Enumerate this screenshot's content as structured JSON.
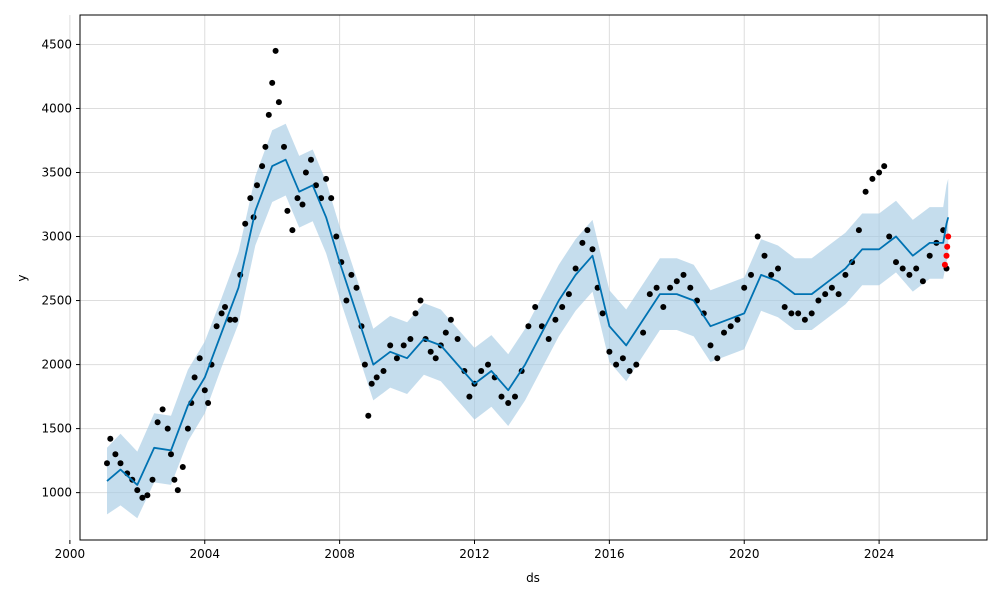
{
  "chart_data": {
    "type": "line",
    "title": "",
    "xlabel": "ds",
    "ylabel": "y",
    "xlim": [
      2000.3,
      2027.2
    ],
    "ylim": [
      630,
      4730
    ],
    "x_ticks": [
      2000,
      2004,
      2008,
      2012,
      2016,
      2020,
      2024
    ],
    "x_tick_labels": [
      "2000",
      "2004",
      "2008",
      "2012",
      "2016",
      "2020",
      "2024"
    ],
    "y_ticks": [
      1000,
      1500,
      2000,
      2500,
      3000,
      3500,
      4000,
      4500
    ],
    "y_tick_labels": [
      "1000",
      "1500",
      "2000",
      "2500",
      "3000",
      "3500",
      "4000",
      "4500"
    ],
    "grid": true,
    "colors": {
      "actual": "#000000",
      "forecast": "#0072B2",
      "interval": "#a6cbe3",
      "holdout": "#ff0000"
    },
    "series": [
      {
        "role": "actual",
        "type": "scatter",
        "points": [
          [
            2001.1,
            1230
          ],
          [
            2001.2,
            1420
          ],
          [
            2001.35,
            1300
          ],
          [
            2001.5,
            1230
          ],
          [
            2001.7,
            1150
          ],
          [
            2001.85,
            1100
          ],
          [
            2002.0,
            1020
          ],
          [
            2002.15,
            960
          ],
          [
            2002.3,
            980
          ],
          [
            2002.45,
            1100
          ],
          [
            2002.6,
            1550
          ],
          [
            2002.75,
            1650
          ],
          [
            2002.9,
            1500
          ],
          [
            2003.0,
            1300
          ],
          [
            2003.1,
            1100
          ],
          [
            2003.2,
            1020
          ],
          [
            2003.35,
            1200
          ],
          [
            2003.5,
            1500
          ],
          [
            2003.6,
            1700
          ],
          [
            2003.7,
            1900
          ],
          [
            2003.85,
            2050
          ],
          [
            2004.0,
            1800
          ],
          [
            2004.1,
            1700
          ],
          [
            2004.2,
            2000
          ],
          [
            2004.35,
            2300
          ],
          [
            2004.5,
            2400
          ],
          [
            2004.6,
            2450
          ],
          [
            2004.75,
            2350
          ],
          [
            2004.9,
            2350
          ],
          [
            2005.05,
            2700
          ],
          [
            2005.2,
            3100
          ],
          [
            2005.35,
            3300
          ],
          [
            2005.45,
            3150
          ],
          [
            2005.55,
            3400
          ],
          [
            2005.7,
            3550
          ],
          [
            2005.8,
            3700
          ],
          [
            2005.9,
            3950
          ],
          [
            2006.0,
            4200
          ],
          [
            2006.1,
            4450
          ],
          [
            2006.2,
            4050
          ],
          [
            2006.35,
            3700
          ],
          [
            2006.45,
            3200
          ],
          [
            2006.6,
            3050
          ],
          [
            2006.75,
            3300
          ],
          [
            2006.9,
            3250
          ],
          [
            2007.0,
            3500
          ],
          [
            2007.15,
            3600
          ],
          [
            2007.3,
            3400
          ],
          [
            2007.45,
            3300
          ],
          [
            2007.6,
            3450
          ],
          [
            2007.75,
            3300
          ],
          [
            2007.9,
            3000
          ],
          [
            2008.05,
            2800
          ],
          [
            2008.2,
            2500
          ],
          [
            2008.35,
            2700
          ],
          [
            2008.5,
            2600
          ],
          [
            2008.65,
            2300
          ],
          [
            2008.75,
            2000
          ],
          [
            2008.85,
            1600
          ],
          [
            2008.95,
            1850
          ],
          [
            2009.1,
            1900
          ],
          [
            2009.3,
            1950
          ],
          [
            2009.5,
            2150
          ],
          [
            2009.7,
            2050
          ],
          [
            2009.9,
            2150
          ],
          [
            2010.1,
            2200
          ],
          [
            2010.25,
            2400
          ],
          [
            2010.4,
            2500
          ],
          [
            2010.55,
            2200
          ],
          [
            2010.7,
            2100
          ],
          [
            2010.85,
            2050
          ],
          [
            2011.0,
            2150
          ],
          [
            2011.15,
            2250
          ],
          [
            2011.3,
            2350
          ],
          [
            2011.5,
            2200
          ],
          [
            2011.7,
            1950
          ],
          [
            2011.85,
            1750
          ],
          [
            2012.0,
            1850
          ],
          [
            2012.2,
            1950
          ],
          [
            2012.4,
            2000
          ],
          [
            2012.6,
            1900
          ],
          [
            2012.8,
            1750
          ],
          [
            2013.0,
            1700
          ],
          [
            2013.2,
            1750
          ],
          [
            2013.4,
            1950
          ],
          [
            2013.6,
            2300
          ],
          [
            2013.8,
            2450
          ],
          [
            2014.0,
            2300
          ],
          [
            2014.2,
            2200
          ],
          [
            2014.4,
            2350
          ],
          [
            2014.6,
            2450
          ],
          [
            2014.8,
            2550
          ],
          [
            2015.0,
            2750
          ],
          [
            2015.2,
            2950
          ],
          [
            2015.35,
            3050
          ],
          [
            2015.5,
            2900
          ],
          [
            2015.65,
            2600
          ],
          [
            2015.8,
            2400
          ],
          [
            2016.0,
            2100
          ],
          [
            2016.2,
            2000
          ],
          [
            2016.4,
            2050
          ],
          [
            2016.6,
            1950
          ],
          [
            2016.8,
            2000
          ],
          [
            2017.0,
            2250
          ],
          [
            2017.2,
            2550
          ],
          [
            2017.4,
            2600
          ],
          [
            2017.6,
            2450
          ],
          [
            2017.8,
            2600
          ],
          [
            2018.0,
            2650
          ],
          [
            2018.2,
            2700
          ],
          [
            2018.4,
            2600
          ],
          [
            2018.6,
            2500
          ],
          [
            2018.8,
            2400
          ],
          [
            2019.0,
            2150
          ],
          [
            2019.2,
            2050
          ],
          [
            2019.4,
            2250
          ],
          [
            2019.6,
            2300
          ],
          [
            2019.8,
            2350
          ],
          [
            2020.0,
            2600
          ],
          [
            2020.2,
            2700
          ],
          [
            2020.4,
            3000
          ],
          [
            2020.6,
            2850
          ],
          [
            2020.8,
            2700
          ],
          [
            2021.0,
            2750
          ],
          [
            2021.2,
            2450
          ],
          [
            2021.4,
            2400
          ],
          [
            2021.6,
            2400
          ],
          [
            2021.8,
            2350
          ],
          [
            2022.0,
            2400
          ],
          [
            2022.2,
            2500
          ],
          [
            2022.4,
            2550
          ],
          [
            2022.6,
            2600
          ],
          [
            2022.8,
            2550
          ],
          [
            2023.0,
            2700
          ],
          [
            2023.2,
            2800
          ],
          [
            2023.4,
            3050
          ],
          [
            2023.6,
            3350
          ],
          [
            2023.8,
            3450
          ],
          [
            2024.0,
            3500
          ],
          [
            2024.15,
            3550
          ],
          [
            2024.3,
            3000
          ],
          [
            2024.5,
            2800
          ],
          [
            2024.7,
            2750
          ],
          [
            2024.9,
            2700
          ],
          [
            2025.1,
            2750
          ],
          [
            2025.3,
            2650
          ],
          [
            2025.5,
            2850
          ],
          [
            2025.7,
            2950
          ],
          [
            2025.9,
            3050
          ],
          [
            2026.0,
            2750
          ]
        ]
      },
      {
        "role": "holdout",
        "type": "scatter",
        "points": [
          [
            2025.95,
            2780
          ],
          [
            2026.0,
            2850
          ],
          [
            2026.02,
            2920
          ],
          [
            2026.05,
            3000
          ]
        ]
      },
      {
        "role": "forecast",
        "type": "line",
        "points": [
          [
            2001.1,
            1090
          ],
          [
            2001.5,
            1180
          ],
          [
            2002.0,
            1060
          ],
          [
            2002.5,
            1350
          ],
          [
            2003.0,
            1330
          ],
          [
            2003.5,
            1680
          ],
          [
            2004.0,
            1900
          ],
          [
            2004.5,
            2250
          ],
          [
            2005.0,
            2600
          ],
          [
            2005.5,
            3200
          ],
          [
            2006.0,
            3550
          ],
          [
            2006.4,
            3600
          ],
          [
            2006.8,
            3350
          ],
          [
            2007.2,
            3400
          ],
          [
            2007.6,
            3150
          ],
          [
            2008.0,
            2800
          ],
          [
            2008.5,
            2400
          ],
          [
            2009.0,
            2000
          ],
          [
            2009.5,
            2100
          ],
          [
            2010.0,
            2050
          ],
          [
            2010.5,
            2200
          ],
          [
            2011.0,
            2150
          ],
          [
            2011.5,
            2000
          ],
          [
            2012.0,
            1850
          ],
          [
            2012.5,
            1950
          ],
          [
            2013.0,
            1800
          ],
          [
            2013.5,
            2000
          ],
          [
            2014.0,
            2250
          ],
          [
            2014.5,
            2500
          ],
          [
            2015.0,
            2700
          ],
          [
            2015.5,
            2850
          ],
          [
            2016.0,
            2300
          ],
          [
            2016.5,
            2150
          ],
          [
            2017.0,
            2350
          ],
          [
            2017.5,
            2550
          ],
          [
            2018.0,
            2550
          ],
          [
            2018.5,
            2500
          ],
          [
            2019.0,
            2300
          ],
          [
            2019.5,
            2350
          ],
          [
            2020.0,
            2400
          ],
          [
            2020.5,
            2700
          ],
          [
            2021.0,
            2650
          ],
          [
            2021.5,
            2550
          ],
          [
            2022.0,
            2550
          ],
          [
            2022.5,
            2650
          ],
          [
            2023.0,
            2750
          ],
          [
            2023.5,
            2900
          ],
          [
            2024.0,
            2900
          ],
          [
            2024.5,
            3000
          ],
          [
            2025.0,
            2850
          ],
          [
            2025.5,
            2950
          ],
          [
            2025.9,
            2950
          ],
          [
            2026.0,
            3100
          ],
          [
            2026.05,
            3150
          ]
        ]
      },
      {
        "role": "interval",
        "type": "area",
        "x": [
          2001.1,
          2001.5,
          2002.0,
          2002.5,
          2003.0,
          2003.5,
          2004.0,
          2004.5,
          2005.0,
          2005.5,
          2006.0,
          2006.4,
          2006.8,
          2007.2,
          2007.6,
          2008.0,
          2008.5,
          2009.0,
          2009.5,
          2010.0,
          2010.5,
          2011.0,
          2011.5,
          2012.0,
          2012.5,
          2013.0,
          2013.5,
          2014.0,
          2014.5,
          2015.0,
          2015.5,
          2016.0,
          2016.5,
          2017.0,
          2017.5,
          2018.0,
          2018.5,
          2019.0,
          2019.5,
          2020.0,
          2020.5,
          2021.0,
          2021.5,
          2022.0,
          2022.5,
          2023.0,
          2023.5,
          2024.0,
          2024.5,
          2025.0,
          2025.5,
          2025.9,
          2026.0,
          2026.05
        ],
        "lower": [
          830,
          900,
          800,
          1080,
          1060,
          1400,
          1620,
          1980,
          2320,
          2930,
          3270,
          3320,
          3070,
          3120,
          2870,
          2520,
          2120,
          1720,
          1820,
          1770,
          1920,
          1870,
          1720,
          1570,
          1670,
          1520,
          1720,
          1970,
          2220,
          2420,
          2570,
          2020,
          1870,
          2070,
          2270,
          2270,
          2220,
          2020,
          2070,
          2120,
          2420,
          2370,
          2270,
          2270,
          2370,
          2470,
          2620,
          2620,
          2720,
          2570,
          2670,
          2670,
          2800,
          2850
        ],
        "upper": [
          1350,
          1460,
          1320,
          1620,
          1600,
          1960,
          2180,
          2520,
          2880,
          3470,
          3830,
          3880,
          3630,
          3680,
          3430,
          3080,
          2680,
          2280,
          2380,
          2330,
          2480,
          2430,
          2280,
          2130,
          2230,
          2080,
          2280,
          2530,
          2780,
          2980,
          3130,
          2580,
          2430,
          2630,
          2830,
          2830,
          2780,
          2580,
          2630,
          2680,
          2980,
          2930,
          2830,
          2830,
          2930,
          3030,
          3180,
          3180,
          3280,
          3130,
          3230,
          3230,
          3400,
          3450
        ]
      }
    ]
  }
}
